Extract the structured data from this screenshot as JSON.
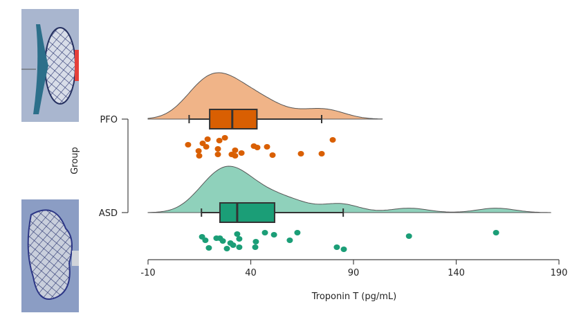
{
  "chart_data": {
    "type": "raincloud",
    "xlabel": "Troponin T (pg/mL)",
    "ylabel": "Group",
    "xlim": [
      -10,
      190
    ],
    "xticks": [
      -10,
      40,
      90,
      140,
      190
    ],
    "grid": false,
    "groups": [
      {
        "name": "PFO",
        "color_box": "#d95f02",
        "color_density": "#f0b488",
        "box": {
          "whisker_low": 10,
          "q1": 20,
          "median": 31,
          "q3": 43,
          "whisker_high": 74.5
        },
        "density_range": [
          -10,
          104
        ],
        "points": [
          9.5,
          14.6,
          14.9,
          16.6,
          18.3,
          19,
          24,
          24,
          24.7,
          27.4,
          30.7,
          32.4,
          32.4,
          35.5,
          41.5,
          43.2,
          47.9,
          50.6,
          64.4,
          74.5,
          79.9
        ],
        "image": "PFO occluder device photo"
      },
      {
        "name": "ASD",
        "color_box": "#1b9e77",
        "color_density": "#8fd1bb",
        "box": {
          "whisker_low": 16,
          "q1": 25,
          "median": 33.4,
          "q3": 51.6,
          "whisker_high": 85
        },
        "density_range": [
          -10,
          186
        ],
        "points": [
          16.3,
          17.9,
          19.6,
          23.3,
          25,
          26.4,
          28.4,
          30.1,
          31.4,
          33.4,
          34.4,
          34.4,
          42.5,
          42.2,
          46.9,
          51.3,
          59,
          62.7,
          81.9,
          85.3,
          117,
          159.4
        ],
        "image": "ASD occluder device photo"
      }
    ]
  }
}
